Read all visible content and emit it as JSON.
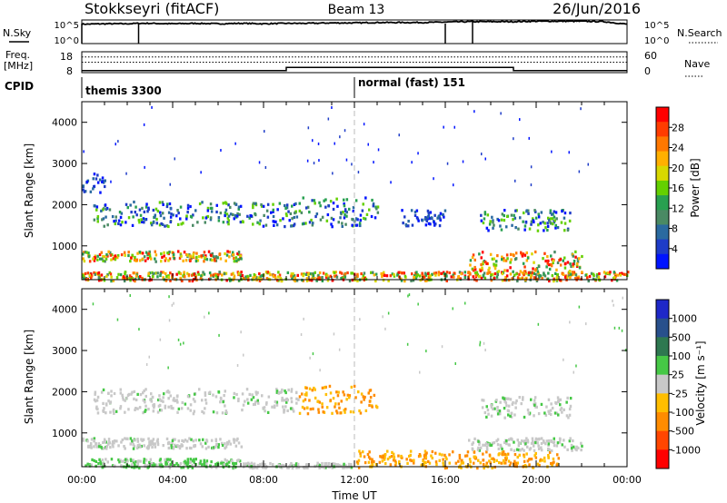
{
  "header": {
    "station": "Stokkseyri (fitACF)",
    "beam": "Beam 13",
    "date": "26/Jun/2016"
  },
  "side_labels": {
    "nsky": "N.Sky",
    "freq_line1": "Freq.",
    "freq_line2": "[MHz]",
    "cpid": "CPID",
    "nsearch": "N.Search",
    "nave": "Nave"
  },
  "cpid_modes": [
    {
      "label": "themis 3300",
      "start_hour": 0
    },
    {
      "label": "normal (fast) 151",
      "start_hour": 12
    }
  ],
  "chart_data": [
    {
      "name": "noise-panel",
      "type": "line",
      "x_hours": [
        0,
        1,
        2,
        2.5,
        3,
        4,
        5,
        6,
        7,
        8,
        9,
        10,
        11,
        12,
        13,
        14,
        15,
        16,
        17,
        18,
        19,
        20,
        21,
        22,
        23,
        24
      ],
      "nsky_log10": [
        4.6,
        4.7,
        4.7,
        4.8,
        4.8,
        4.7,
        4.8,
        4.7,
        4.8,
        4.7,
        4.8,
        4.8,
        4.9,
        4.9,
        5.0,
        5.0,
        5.0,
        5.1,
        5.2,
        5.2,
        5.2,
        5.3,
        5.3,
        5.3,
        5.2,
        4.6
      ],
      "left_ticks": [
        "10^5",
        "10^0"
      ],
      "right_ticks": [
        "10^5",
        "10^0"
      ],
      "spikes_hours": [
        0,
        2.5,
        16,
        17.2
      ]
    },
    {
      "name": "freq-nave-panel",
      "type": "line",
      "freq_mhz_steps": [
        [
          0,
          9.0
        ],
        [
          9.0,
          10.5
        ],
        [
          19.0,
          9.0
        ],
        [
          24,
          9.0
        ]
      ],
      "nave_dotted": 45,
      "nsearch_dotted": 30,
      "left_ticks": [
        "18",
        "8"
      ],
      "right_ticks": [
        "60",
        "0"
      ]
    },
    {
      "name": "power-panel",
      "type": "heatmap",
      "xlabel": "",
      "ylabel": "Slant Range [km]",
      "x_ticks": [
        "00:00",
        "04:00",
        "08:00",
        "12:00",
        "16:00",
        "20:00",
        "00:00"
      ],
      "y_ticks": [
        "1000",
        "2000",
        "3000",
        "4000"
      ],
      "colorbar_label": "Power [dB]",
      "colorbar_ticks": [
        "28",
        "24",
        "20",
        "16",
        "12",
        "8",
        "4"
      ],
      "colorbar_colors": [
        "#ff0000",
        "#ff3c00",
        "#ff7800",
        "#ffb000",
        "#d8d800",
        "#64d000",
        "#28a050",
        "#4a8a64",
        "#2a6aa0",
        "#1e3cc8",
        "#0014ff"
      ],
      "echo_bands": [
        {
          "start_hour": 0.0,
          "end_hour": 24.0,
          "range_lo_km": 180,
          "range_hi_km": 400,
          "level": "high"
        },
        {
          "start_hour": 0.0,
          "end_hour": 7.0,
          "range_lo_km": 650,
          "range_hi_km": 900,
          "level": "high"
        },
        {
          "start_hour": 17.0,
          "end_hour": 22.0,
          "range_lo_km": 400,
          "range_hi_km": 900,
          "level": "high"
        },
        {
          "start_hour": 0.5,
          "end_hour": 9.5,
          "range_lo_km": 1500,
          "range_hi_km": 2100,
          "level": "mid"
        },
        {
          "start_hour": 9.5,
          "end_hour": 13.0,
          "range_lo_km": 1500,
          "range_hi_km": 2200,
          "level": "mid"
        },
        {
          "start_hour": 14.0,
          "end_hour": 16.0,
          "range_lo_km": 1500,
          "range_hi_km": 1900,
          "level": "low"
        },
        {
          "start_hour": 17.5,
          "end_hour": 21.5,
          "range_lo_km": 1400,
          "range_hi_km": 1900,
          "level": "mid"
        },
        {
          "start_hour": 0.0,
          "end_hour": 1.0,
          "range_lo_km": 2300,
          "range_hi_km": 2800,
          "level": "low"
        }
      ]
    },
    {
      "name": "velocity-panel",
      "type": "heatmap",
      "xlabel": "Time UT",
      "ylabel": "Slant Range [km]",
      "x_ticks": [
        "00:00",
        "04:00",
        "08:00",
        "12:00",
        "16:00",
        "20:00",
        "00:00"
      ],
      "y_ticks": [
        "1000",
        "2000",
        "3000",
        "4000"
      ],
      "colorbar_label": "Velocity [m s⁻¹]",
      "colorbar_ticks": [
        "1000",
        "500",
        "100",
        "25",
        "-25",
        "-100",
        "-500",
        "-1000"
      ],
      "colorbar_colors": [
        "#1e28c8",
        "#28508c",
        "#2e7850",
        "#46c846",
        "#c8c8c8",
        "#ffbe00",
        "#ff8c00",
        "#ff4600",
        "#ff0000"
      ],
      "echo_bands": [
        {
          "start_hour": 0.0,
          "end_hour": 7.0,
          "range_lo_km": 180,
          "range_hi_km": 400,
          "level": "green"
        },
        {
          "start_hour": 7.0,
          "end_hour": 12.0,
          "range_lo_km": 180,
          "range_hi_km": 300,
          "level": "grey"
        },
        {
          "start_hour": 12.0,
          "end_hour": 21.0,
          "range_lo_km": 180,
          "range_hi_km": 600,
          "level": "orange"
        },
        {
          "start_hour": 0.0,
          "end_hour": 7.0,
          "range_lo_km": 650,
          "range_hi_km": 900,
          "level": "grey"
        },
        {
          "start_hour": 17.0,
          "end_hour": 22.0,
          "range_lo_km": 600,
          "range_hi_km": 900,
          "level": "grey"
        },
        {
          "start_hour": 0.5,
          "end_hour": 9.5,
          "range_lo_km": 1500,
          "range_hi_km": 2100,
          "level": "grey"
        },
        {
          "start_hour": 9.5,
          "end_hour": 13.0,
          "range_lo_km": 1500,
          "range_hi_km": 2200,
          "level": "orange"
        },
        {
          "start_hour": 17.5,
          "end_hour": 21.5,
          "range_lo_km": 1400,
          "range_hi_km": 1900,
          "level": "grey"
        }
      ]
    }
  ]
}
